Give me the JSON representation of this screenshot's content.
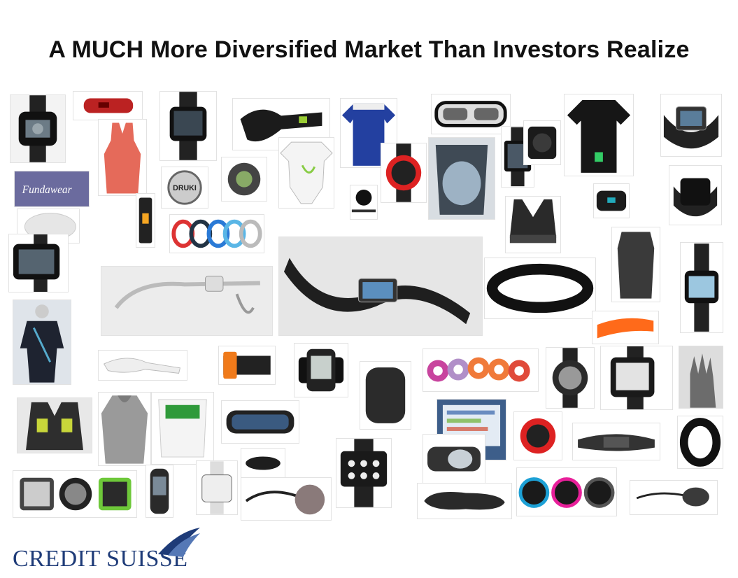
{
  "slide": {
    "title": "A MUCH More Diversified Market Than Investors Realize"
  },
  "brand": {
    "logo_text": "CREDIT SUISSE",
    "color": "#1e3b78"
  },
  "tile_labels": {
    "fundawear": "Fundawear",
    "druki": "DRUKI"
  },
  "products": [
    "casio-watch",
    "red-band",
    "sports-tank",
    "smartwatch",
    "jawbone-up",
    "blue-shirt",
    "ski-goggles",
    "black-tshirt",
    "wrist-display",
    "fundawear-ad",
    "clip-tracker",
    "baby-onesie",
    "sport-watch",
    "chest-strap-device",
    "smartwatch-2",
    "armband",
    "black-band",
    "color-bands",
    "pedometer",
    "sports-bra",
    "compression-top",
    "boxy-watch",
    "google-glass",
    "iwatch-concept",
    "nike-fuelband",
    "digital-watch",
    "orange-band",
    "body-suit",
    "clip-device",
    "sensor-wrap",
    "fitness-watch",
    "pebble",
    "tapeable-sensors",
    "gps-watch",
    "garmin-watch",
    "touch-glove",
    "vest",
    "hoodie",
    "wrap-band",
    "recon-goggles",
    "app-screen",
    "red-watch",
    "strap",
    "fitbit-flex",
    "metawatch",
    "phone-device",
    "square-watch",
    "earpiece",
    "pendant",
    "app-watch",
    "insole",
    "nixon-watches",
    "headset"
  ]
}
